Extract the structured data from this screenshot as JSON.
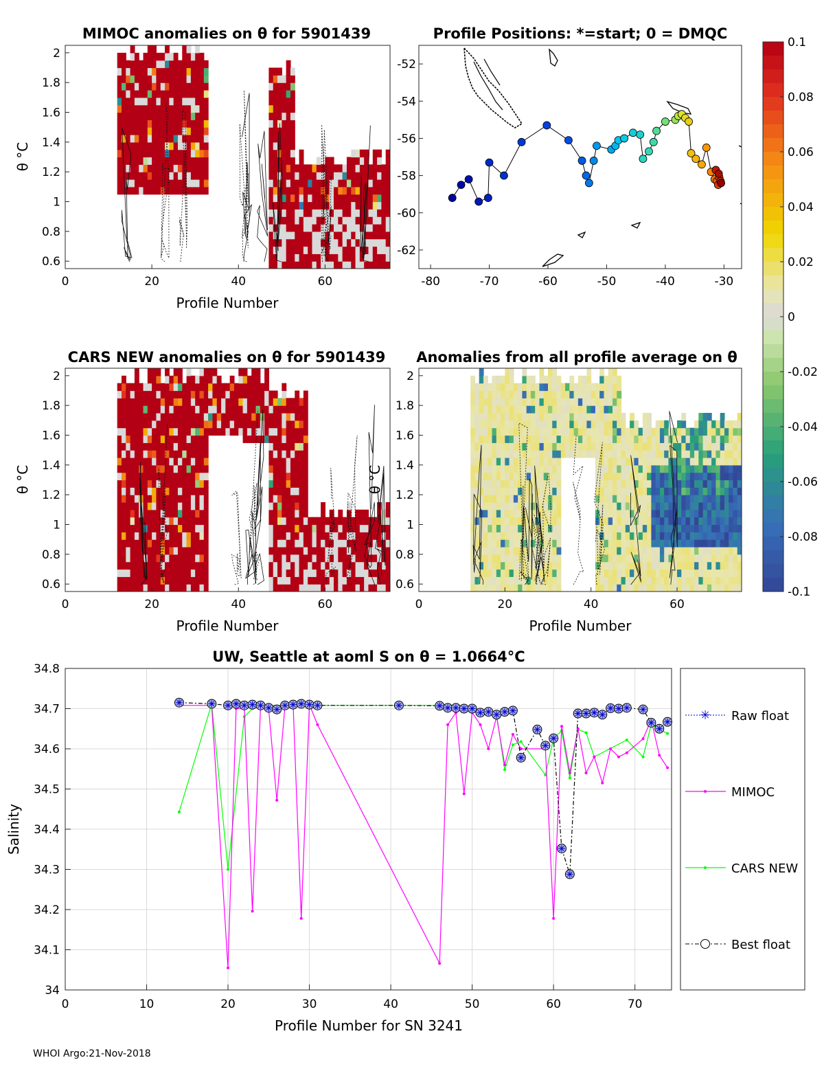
{
  "footer": "WHOI Argo:21-Nov-2018",
  "colorbar": {
    "ticks": [
      "0.1",
      "0.08",
      "0.06",
      "0.04",
      "0.02",
      "0",
      "-0.02",
      "-0.04",
      "-0.06",
      "-0.08",
      "-0.1"
    ],
    "range": [
      -0.1,
      0.1
    ]
  },
  "chart_data": [
    {
      "id": "mimoc-anom",
      "type": "heatmap",
      "title": "MIMOC anomalies on θ  for 5901439",
      "xlabel": "Profile Number",
      "ylabel": "θ °C",
      "xlim": [
        0,
        75
      ],
      "ylim": [
        0.55,
        2.05
      ],
      "xticks": [
        "0",
        "20",
        "40",
        "60"
      ],
      "yticks": [
        "0.6",
        "0.8",
        "1",
        "1.2",
        "1.4",
        "1.6",
        "1.8",
        "2"
      ],
      "columns": [
        [
          12,
          33,
          1.05,
          2.05
        ],
        [
          47,
          53,
          0.55,
          1.95
        ],
        [
          53,
          75,
          0.55,
          1.35
        ]
      ],
      "gaps": [
        [
          33,
          47,
          0.55,
          2.05
        ]
      ]
    },
    {
      "id": "profile-positions",
      "type": "scatter",
      "title": "Profile Positions: *=start; 0 = DMQC",
      "xlabel": "",
      "ylabel": "",
      "xlim": [
        -82,
        -27
      ],
      "ylim": [
        -63,
        -51
      ],
      "xticks": [
        "-80",
        "-70",
        "-60",
        "-50",
        "-40",
        "-30"
      ],
      "yticks": [
        "-52",
        "-54",
        "-56",
        "-58",
        "-60",
        "-62"
      ],
      "track": [
        [
          -76.3,
          -59.2
        ],
        [
          -74.8,
          -58.5
        ],
        [
          -73.5,
          -58.2
        ],
        [
          -71.8,
          -59.4
        ],
        [
          -70.2,
          -59.2
        ],
        [
          -70.0,
          -57.3
        ],
        [
          -67.5,
          -58.0
        ],
        [
          -64.5,
          -56.2
        ],
        [
          -60.2,
          -55.3
        ],
        [
          -56.5,
          -56.1
        ],
        [
          -54.2,
          -57.2
        ],
        [
          -53.5,
          -58.0
        ],
        [
          -53.0,
          -58.4
        ],
        [
          -52.2,
          -57.2
        ],
        [
          -51.7,
          -56.4
        ],
        [
          -49.2,
          -56.6
        ],
        [
          -48.5,
          -56.4
        ],
        [
          -48.0,
          -56.1
        ],
        [
          -47.0,
          -56.0
        ],
        [
          -45.5,
          -55.7
        ],
        [
          -44.3,
          -55.8
        ],
        [
          -43.8,
          -57.1
        ],
        [
          -42.8,
          -56.7
        ],
        [
          -42.0,
          -56.2
        ],
        [
          -41.5,
          -55.6
        ],
        [
          -40.0,
          -55.1
        ],
        [
          -38.3,
          -55.0
        ],
        [
          -37.8,
          -54.8
        ],
        [
          -37.2,
          -54.7
        ],
        [
          -36.6,
          -54.9
        ],
        [
          -36.0,
          -55.1
        ],
        [
          -35.6,
          -56.8
        ],
        [
          -34.8,
          -57.1
        ],
        [
          -33.8,
          -57.4
        ],
        [
          -33.0,
          -56.5
        ],
        [
          -32.2,
          -57.8
        ],
        [
          -31.6,
          -58.2
        ],
        [
          -31.2,
          -58.3
        ],
        [
          -30.8,
          -58.1
        ],
        [
          -31.0,
          -58.5
        ],
        [
          -30.6,
          -58.3
        ],
        [
          -31.4,
          -57.7
        ],
        [
          -30.9,
          -57.9
        ],
        [
          -30.5,
          -58.4
        ]
      ]
    },
    {
      "id": "cars-anom",
      "type": "heatmap",
      "title": "CARS NEW anomalies on θ for 5901439",
      "xlabel": "Profile Number",
      "ylabel": "θ °C",
      "xlim": [
        0,
        75
      ],
      "ylim": [
        0.55,
        2.05
      ],
      "xticks": [
        "0",
        "20",
        "40",
        "60"
      ],
      "yticks": [
        "0.6",
        "0.8",
        "1",
        "1.2",
        "1.4",
        "1.6",
        "1.8",
        "2"
      ],
      "columns": [
        [
          12,
          33,
          0.55,
          2.05
        ],
        [
          33,
          47,
          1.55,
          2.05
        ],
        [
          47,
          56,
          0.55,
          1.95
        ],
        [
          56,
          75,
          0.55,
          1.15
        ]
      ],
      "gaps": [
        [
          33,
          41,
          0.55,
          1.55
        ]
      ]
    },
    {
      "id": "avg-anom",
      "type": "heatmap",
      "title": "Anomalies from all profile average on θ",
      "xlabel": "Profile Number",
      "ylabel": "θ °C",
      "xlim": [
        0,
        75
      ],
      "ylim": [
        0.55,
        2.05
      ],
      "xticks": [
        "0",
        "20",
        "40",
        "60"
      ],
      "yticks": [
        "0.6",
        "0.8",
        "1",
        "1.2",
        "1.4",
        "1.6",
        "1.8",
        "2"
      ],
      "columns": [
        [
          12,
          47,
          0.55,
          2.05
        ],
        [
          47,
          75,
          0.55,
          1.75
        ]
      ],
      "gaps": [
        [
          33,
          41,
          0.55,
          1.45
        ]
      ]
    },
    {
      "id": "salinity",
      "type": "line",
      "title": "UW, Seattle at aoml S on θ = 1.0664°C",
      "xlabel": "Profile Number for SN 3241",
      "ylabel": "Salinity",
      "xlim": [
        0,
        74.5
      ],
      "ylim": [
        34,
        34.8
      ],
      "xticks": [
        "0",
        "10",
        "20",
        "30",
        "40",
        "50",
        "60",
        "70"
      ],
      "yticks": [
        "34",
        "34.1",
        "34.2",
        "34.3",
        "34.4",
        "34.5",
        "34.6",
        "34.7",
        "34.8"
      ],
      "legend": [
        "Raw float",
        "MIMOC",
        "CARS NEW",
        "Best float"
      ],
      "legend_loc": "outside-right",
      "series": [
        {
          "name": "Best float",
          "x": [
            14,
            18,
            20,
            21,
            22,
            23,
            24,
            25,
            26,
            27,
            28,
            29,
            30,
            31,
            41,
            46,
            47,
            48,
            49,
            50,
            51,
            52,
            53,
            54,
            55,
            56,
            58,
            59,
            60,
            61,
            62,
            63,
            64,
            65,
            66,
            67,
            68,
            69,
            71,
            72,
            73,
            74
          ],
          "y": [
            34.715,
            34.712,
            34.708,
            34.712,
            34.708,
            34.71,
            34.708,
            34.702,
            34.698,
            34.708,
            34.71,
            34.712,
            34.71,
            34.708,
            34.708,
            34.707,
            34.702,
            34.702,
            34.7,
            34.7,
            34.69,
            34.692,
            34.685,
            34.692,
            34.695,
            34.578,
            34.648,
            34.608,
            34.626,
            34.352,
            34.288,
            34.688,
            34.688,
            34.69,
            34.685,
            34.701,
            34.7,
            34.702,
            34.698,
            34.665,
            34.65,
            34.667
          ]
        },
        {
          "name": "MIMOC",
          "x": [
            14,
            18,
            20,
            21,
            22,
            23,
            24,
            25,
            26,
            27,
            28,
            29,
            30,
            31,
            46,
            47,
            48,
            49,
            50,
            51,
            52,
            53,
            54,
            55,
            56,
            59,
            60,
            61,
            62,
            63,
            64,
            65,
            66,
            67,
            68,
            69,
            71,
            72,
            73,
            74
          ],
          "y": [
            34.708,
            34.708,
            34.055,
            34.7,
            34.7,
            34.196,
            34.708,
            34.698,
            34.472,
            34.706,
            34.71,
            34.178,
            34.71,
            34.66,
            34.066,
            34.66,
            34.69,
            34.488,
            34.69,
            34.66,
            34.6,
            34.68,
            34.56,
            34.636,
            34.6,
            34.6,
            34.178,
            34.656,
            34.54,
            34.65,
            34.54,
            34.58,
            34.515,
            34.6,
            34.58,
            34.59,
            34.625,
            34.672,
            34.584,
            34.553
          ]
        },
        {
          "name": "CARS NEW",
          "x": [
            14,
            18,
            20,
            22,
            23,
            24,
            41,
            46,
            47,
            48,
            49,
            50,
            51,
            52,
            53,
            54,
            55,
            56,
            59,
            60,
            61,
            62,
            63,
            64,
            65,
            69,
            71,
            72,
            74
          ],
          "y": [
            34.443,
            34.712,
            34.3,
            34.68,
            34.7,
            34.708,
            34.708,
            34.708,
            34.7,
            34.702,
            34.7,
            34.698,
            34.69,
            34.69,
            34.685,
            34.548,
            34.61,
            34.618,
            34.535,
            34.625,
            34.645,
            34.528,
            34.648,
            34.64,
            34.58,
            34.622,
            34.58,
            34.66,
            34.638
          ]
        }
      ]
    }
  ]
}
